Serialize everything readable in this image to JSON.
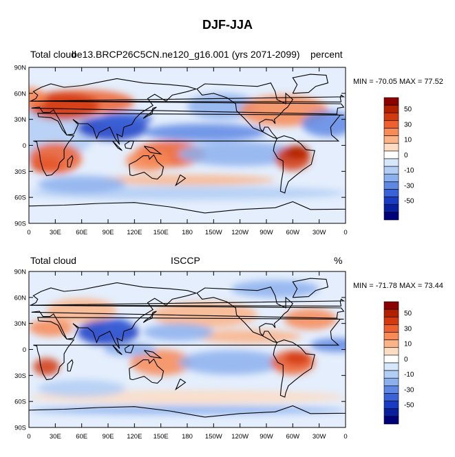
{
  "title": "DJF-JJA",
  "panels": [
    {
      "left_label": "Total cloud",
      "center_label": "be13.BRCP26C5CN.ne120_g16.001 (yrs 2071-2099)",
      "right_label": "percent",
      "min_max": "MIN = -70.05 MAX =  77.52",
      "lat_ticks": [
        "90N",
        "60N",
        "30N",
        "0",
        "30S",
        "60S",
        "90S"
      ],
      "lon_ticks": [
        "0",
        "30E",
        "60E",
        "90E",
        "120E",
        "150E",
        "180",
        "150W",
        "120W",
        "90W",
        "60W",
        "30W",
        "0"
      ],
      "colorbar_labels": [
        "50",
        "30",
        "10",
        "0",
        "-10",
        "-30",
        "-50"
      ]
    },
    {
      "left_label": "Total cloud",
      "center_label": "ISCCP",
      "right_label": "%",
      "min_max": "MIN = -71.78 MAX =  73.44",
      "lat_ticks": [
        "90N",
        "60N",
        "30N",
        "0",
        "30S",
        "60S",
        "90S"
      ],
      "lon_ticks": [
        "0",
        "30E",
        "60E",
        "90E",
        "120E",
        "150E",
        "180",
        "150W",
        "120W",
        "90W",
        "60W",
        "30W",
        "0"
      ],
      "colorbar_labels": [
        "50",
        "30",
        "10",
        "0",
        "-10",
        "-30",
        "-50"
      ]
    }
  ],
  "colorbar_colors": [
    "#8b0000",
    "#b22000",
    "#d43a10",
    "#ee6030",
    "#f88a55",
    "#fbb488",
    "#fddcc4",
    "#ffffff",
    "#d6e6fb",
    "#b2cef5",
    "#8cb0ee",
    "#5f88e4",
    "#3a62d8",
    "#1a3cc4",
    "#0a1f9e",
    "#00007a"
  ]
}
